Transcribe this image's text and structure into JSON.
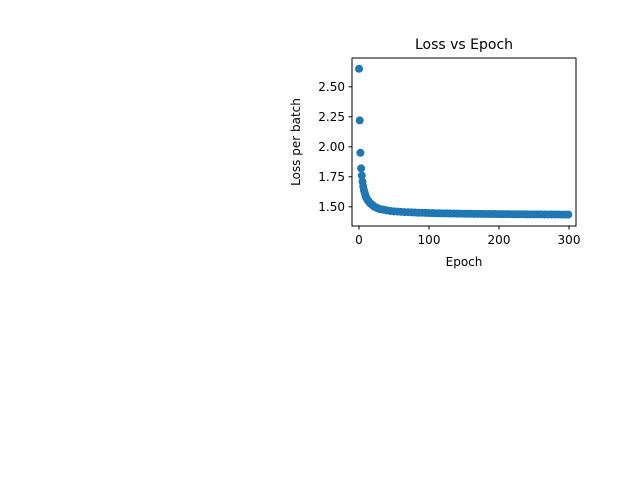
{
  "chart_data": {
    "type": "scatter",
    "title": "Loss vs Epoch",
    "xlabel": "Epoch",
    "ylabel": "Loss per batch",
    "xlim": [
      -10,
      310
    ],
    "ylim": [
      1.34,
      2.74
    ],
    "xticks": [
      0,
      100,
      200,
      300
    ],
    "xtick_labels": [
      "0",
      "100",
      "200",
      "300"
    ],
    "yticks": [
      1.5,
      1.75,
      2.0,
      2.25,
      2.5
    ],
    "ytick_labels": [
      "1.50",
      "1.75",
      "2.00",
      "2.25",
      "2.50"
    ],
    "grid": false,
    "legend": "none",
    "marker_color": "#1f77b4",
    "series": [
      {
        "x": [
          0,
          1,
          2,
          3,
          4,
          5,
          6,
          7,
          8,
          9,
          10,
          11,
          12,
          13,
          14,
          15,
          16,
          17,
          18,
          19,
          20,
          22,
          24,
          26,
          28,
          30,
          33,
          36,
          40,
          45,
          50,
          55,
          60,
          65,
          70,
          75,
          80,
          85,
          90,
          95,
          100,
          105,
          110,
          115,
          120,
          125,
          130,
          135,
          140,
          145,
          150,
          155,
          160,
          165,
          170,
          175,
          180,
          185,
          190,
          195,
          200,
          205,
          210,
          215,
          220,
          225,
          230,
          235,
          240,
          245,
          250,
          255,
          260,
          265,
          270,
          275,
          280,
          285,
          290,
          295,
          299
        ],
        "y": [
          2.65,
          2.22,
          1.95,
          1.82,
          1.76,
          1.71,
          1.67,
          1.64,
          1.62,
          1.6,
          1.58,
          1.57,
          1.56,
          1.55,
          1.545,
          1.535,
          1.53,
          1.525,
          1.52,
          1.515,
          1.51,
          1.5,
          1.495,
          1.49,
          1.485,
          1.48,
          1.478,
          1.475,
          1.47,
          1.465,
          1.462,
          1.46,
          1.458,
          1.456,
          1.455,
          1.454,
          1.452,
          1.45,
          1.45,
          1.449,
          1.448,
          1.447,
          1.446,
          1.446,
          1.445,
          1.445,
          1.444,
          1.444,
          1.443,
          1.443,
          1.442,
          1.442,
          1.442,
          1.441,
          1.441,
          1.441,
          1.44,
          1.44,
          1.44,
          1.44,
          1.439,
          1.439,
          1.439,
          1.439,
          1.438,
          1.438,
          1.438,
          1.438,
          1.437,
          1.437,
          1.437,
          1.437,
          1.437,
          1.436,
          1.436,
          1.436,
          1.436,
          1.436,
          1.435,
          1.435,
          1.435
        ]
      }
    ]
  }
}
